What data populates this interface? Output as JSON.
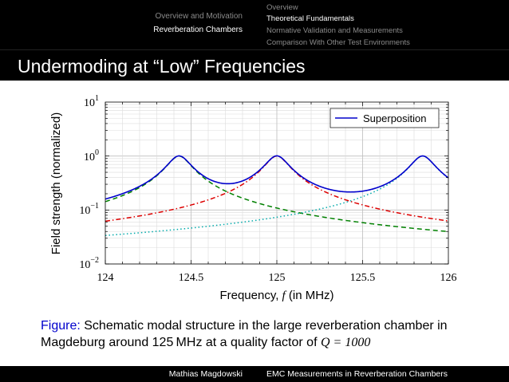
{
  "header": {
    "sections": [
      "Overview and Motivation",
      "Reverberation Chambers"
    ],
    "subsections": [
      "Overview",
      "Theoretical Fundamentals",
      "Normative Validation and Measurements",
      "Comparison With Other Test Environments"
    ]
  },
  "frame_title": "Undermoding at “Low” Frequencies",
  "chart_data": {
    "type": "line",
    "xlabel_text": "Frequency, ",
    "xlabel_var": "f",
    "xlabel_unit": " (in MHz)",
    "ylabel": "Field strength (normalized)",
    "xlim": [
      124,
      126
    ],
    "ylim": [
      0.01,
      10
    ],
    "yscale": "log",
    "x_ticks": [
      "124",
      "124.5",
      "125",
      "125.5",
      "126"
    ],
    "y_ticks": [
      {
        "base": "10",
        "exp": "−2"
      },
      {
        "base": "10",
        "exp": "−1"
      },
      {
        "base": "10",
        "exp": "0"
      },
      {
        "base": "10",
        "exp": "1"
      }
    ],
    "grid": true,
    "legend_position": "top-right",
    "quality_factor": 1000,
    "series": [
      {
        "name": "Superposition",
        "kind": "superposition",
        "color": "#0000cc",
        "style": "solid"
      },
      {
        "kind": "mode",
        "resonance_mhz": 124.43,
        "color": "#008000",
        "style": "dashed"
      },
      {
        "kind": "mode",
        "resonance_mhz": 125.0,
        "color": "#dd0000",
        "style": "dashdot"
      },
      {
        "kind": "mode",
        "resonance_mhz": 125.85,
        "color": "#00aaaa",
        "style": "dotted"
      }
    ]
  },
  "caption": {
    "label": "Figure:",
    "text": "Schematic modal structure in the large reverberation chamber in Magdeburg around 125 MHz at a quality factor of ",
    "math": "Q = 1000"
  },
  "footer": {
    "author": "Mathias Magdowski",
    "talk_title": "EMC Measurements  in Reverberation Chambers"
  }
}
